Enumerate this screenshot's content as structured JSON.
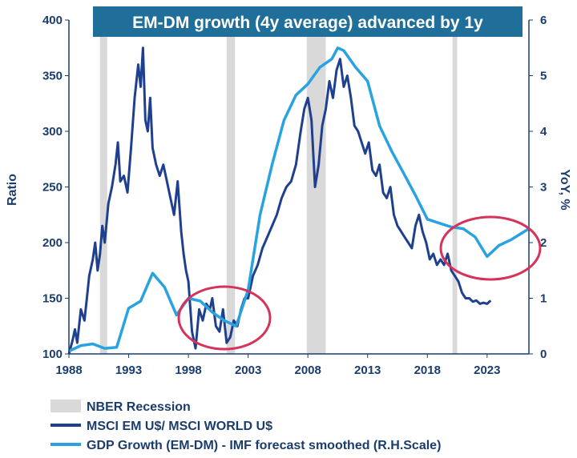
{
  "chart_data": {
    "type": "line",
    "title": "EM-DM growth (4y average) advanced by 1y",
    "ylabel": "Ratio",
    "y2label": "YoY, %",
    "xlim": [
      1988,
      2026.5
    ],
    "ylim": [
      100,
      400
    ],
    "y2lim": [
      0,
      6
    ],
    "x_ticks": [
      "1988",
      "1993",
      "1998",
      "2003",
      "2008",
      "2013",
      "2018",
      "2023"
    ],
    "y_ticks": [
      "100",
      "150",
      "200",
      "250",
      "300",
      "350",
      "400"
    ],
    "y2_ticks": [
      "0",
      "1",
      "2",
      "3",
      "4",
      "5",
      "6"
    ],
    "recessions": [
      [
        1990.6,
        1991.2
      ],
      [
        2001.2,
        2001.9
      ],
      [
        2007.9,
        2009.5
      ],
      [
        2020.1,
        2020.5
      ]
    ],
    "legend": [
      {
        "label": "NBER Recession"
      },
      {
        "label": "MSCI EM U$/ MSCI WORLD U$"
      },
      {
        "label": "GDP Growth (EM-DM) - IMF forecast smoothed (R.H.Scale)"
      }
    ],
    "series": [
      {
        "name": "MSCI EM U$/ MSCI WORLD U$",
        "axis": "left",
        "color": "#1f3f8f",
        "x": [
          1988.0,
          1988.3,
          1988.5,
          1988.7,
          1989.0,
          1989.3,
          1989.5,
          1989.7,
          1990.0,
          1990.2,
          1990.4,
          1990.6,
          1990.8,
          1991.0,
          1991.3,
          1991.6,
          1991.9,
          1992.1,
          1992.3,
          1992.6,
          1992.9,
          1993.2,
          1993.5,
          1993.8,
          1994.0,
          1994.2,
          1994.4,
          1994.6,
          1994.8,
          1995.0,
          1995.3,
          1995.6,
          1995.9,
          1996.2,
          1996.5,
          1996.8,
          1997.1,
          1997.4,
          1997.6,
          1997.8,
          1998.0,
          1998.3,
          1998.6,
          1998.9,
          1999.2,
          1999.5,
          1999.8,
          2000.0,
          2000.3,
          2000.6,
          2000.9,
          2001.2,
          2001.5,
          2001.8,
          2002.1,
          2002.4,
          2002.7,
          2003.0,
          2003.4,
          2003.8,
          2004.2,
          2004.6,
          2005.0,
          2005.4,
          2005.8,
          2006.2,
          2006.6,
          2007.0,
          2007.4,
          2007.7,
          2008.0,
          2008.3,
          2008.6,
          2008.9,
          2009.2,
          2009.5,
          2009.8,
          2010.1,
          2010.4,
          2010.7,
          2011.0,
          2011.3,
          2011.6,
          2011.9,
          2012.2,
          2012.5,
          2012.8,
          2013.1,
          2013.4,
          2013.7,
          2014.0,
          2014.3,
          2014.6,
          2014.9,
          2015.2,
          2015.5,
          2015.8,
          2016.1,
          2016.4,
          2016.7,
          2017.0,
          2017.3,
          2017.6,
          2017.9,
          2018.2,
          2018.5,
          2018.8,
          2019.1,
          2019.4,
          2019.7,
          2020.0,
          2020.3,
          2020.6,
          2020.9,
          2021.2,
          2021.5,
          2021.8,
          2022.1,
          2022.4,
          2022.7,
          2023.0,
          2023.3
        ],
        "values": [
          100,
          112,
          122,
          110,
          140,
          130,
          150,
          170,
          185,
          200,
          175,
          190,
          215,
          200,
          235,
          250,
          270,
          290,
          255,
          260,
          245,
          285,
          330,
          360,
          340,
          375,
          310,
          300,
          330,
          285,
          270,
          260,
          270,
          255,
          240,
          225,
          255,
          210,
          190,
          175,
          165,
          120,
          105,
          140,
          130,
          145,
          140,
          150,
          125,
          120,
          140,
          110,
          115,
          130,
          125,
          140,
          150,
          150,
          170,
          180,
          195,
          205,
          215,
          225,
          240,
          250,
          255,
          270,
          300,
          320,
          330,
          310,
          250,
          270,
          305,
          320,
          345,
          330,
          355,
          365,
          340,
          350,
          330,
          305,
          300,
          290,
          280,
          290,
          265,
          260,
          270,
          245,
          240,
          250,
          225,
          215,
          210,
          205,
          200,
          195,
          215,
          225,
          210,
          200,
          185,
          190,
          180,
          185,
          180,
          190,
          175,
          170,
          165,
          155,
          150,
          150,
          147,
          148,
          145,
          146,
          145,
          148
        ]
      },
      {
        "name": "GDP Growth (EM-DM) - IMF forecast smoothed (R.H.Scale)",
        "axis": "right",
        "color": "#29a3e0",
        "x": [
          1988.0,
          1989.0,
          1990.0,
          1991.0,
          1992.0,
          1993.0,
          1994.0,
          1995.0,
          1996.0,
          1997.0,
          1998.0,
          1999.0,
          2000.0,
          2001.0,
          2002.0,
          2003.0,
          2004.0,
          2005.0,
          2006.0,
          2007.0,
          2008.0,
          2009.0,
          2010.0,
          2010.5,
          2011.0,
          2012.0,
          2013.0,
          2014.0,
          2015.0,
          2016.0,
          2017.0,
          2018.0,
          2019.0,
          2020.0,
          2021.0,
          2022.0,
          2023.0,
          2024.0,
          2025.0,
          2026.5
        ],
        "values": [
          0.05,
          0.15,
          0.18,
          0.1,
          0.12,
          0.82,
          0.95,
          1.45,
          1.2,
          0.7,
          1.0,
          0.95,
          0.75,
          0.6,
          0.5,
          1.15,
          2.5,
          3.4,
          4.2,
          4.65,
          4.85,
          5.15,
          5.3,
          5.5,
          5.45,
          5.15,
          4.9,
          4.1,
          3.65,
          3.25,
          2.85,
          2.42,
          2.35,
          2.28,
          2.25,
          2.1,
          1.75,
          1.95,
          2.05,
          2.25
        ]
      }
    ]
  }
}
